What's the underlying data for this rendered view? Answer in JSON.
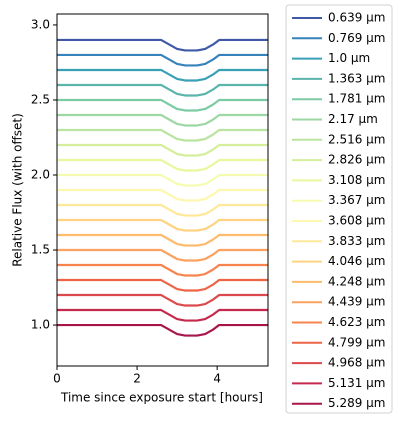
{
  "chart_data": {
    "type": "line",
    "xlabel": "Time since exposure start [hours]",
    "ylabel": "Relative Flux (with offset)",
    "x": [
      0,
      1,
      2,
      2.6,
      2.8,
      3.0,
      3.2,
      3.5,
      3.7,
      3.9,
      4.05,
      5,
      5.27
    ],
    "xlim": [
      0,
      5.27
    ],
    "ylim": [
      0.727,
      3.073
    ],
    "xticks": [
      0,
      2,
      4
    ],
    "yticks": [
      {
        "value": 1,
        "label": "1.0"
      },
      1.5,
      {
        "value": 2,
        "label": "2.0"
      },
      2.5,
      {
        "value": 3,
        "label": "3.0"
      }
    ],
    "legend": "outside-right",
    "series": [
      {
        "name": "0.639 μm",
        "color": "#3f59a7",
        "values": [
          2.9,
          2.9,
          2.9,
          2.9,
          2.87,
          2.84,
          2.83,
          2.83,
          2.84,
          2.87,
          2.9,
          2.9,
          2.9
        ]
      },
      {
        "name": "0.769 μm",
        "color": "#3682ba",
        "values": [
          2.8,
          2.8,
          2.8,
          2.8,
          2.77,
          2.74,
          2.73,
          2.73,
          2.74,
          2.77,
          2.8,
          2.8,
          2.8
        ]
      },
      {
        "name": "1.0 μm",
        "color": "#3aa0b6",
        "values": [
          2.7,
          2.7,
          2.7,
          2.7,
          2.67,
          2.64,
          2.63,
          2.63,
          2.64,
          2.67,
          2.7,
          2.7,
          2.7
        ]
      },
      {
        "name": "1.363 μm",
        "color": "#5ab4ac",
        "values": [
          2.6,
          2.6,
          2.6,
          2.6,
          2.57,
          2.54,
          2.53,
          2.53,
          2.54,
          2.57,
          2.6,
          2.6,
          2.6
        ]
      },
      {
        "name": "1.781 μm",
        "color": "#7ccba4",
        "values": [
          2.5,
          2.5,
          2.5,
          2.5,
          2.47,
          2.44,
          2.43,
          2.43,
          2.44,
          2.47,
          2.5,
          2.5,
          2.5
        ]
      },
      {
        "name": "2.17 μm",
        "color": "#9dd7a4",
        "values": [
          2.4,
          2.4,
          2.4,
          2.4,
          2.37,
          2.34,
          2.33,
          2.33,
          2.34,
          2.37,
          2.4,
          2.4,
          2.4
        ]
      },
      {
        "name": "2.516 μm",
        "color": "#bbe4a0",
        "values": [
          2.3,
          2.3,
          2.3,
          2.3,
          2.27,
          2.24,
          2.23,
          2.23,
          2.24,
          2.27,
          2.3,
          2.3,
          2.3
        ]
      },
      {
        "name": "2.826 μm",
        "color": "#d5ee9b",
        "values": [
          2.2,
          2.2,
          2.2,
          2.2,
          2.17,
          2.14,
          2.13,
          2.13,
          2.14,
          2.17,
          2.2,
          2.2,
          2.2
        ]
      },
      {
        "name": "3.108 μm",
        "color": "#eaf79f",
        "values": [
          2.1,
          2.1,
          2.1,
          2.1,
          2.07,
          2.04,
          2.03,
          2.03,
          2.04,
          2.07,
          2.1,
          2.1,
          2.1
        ]
      },
      {
        "name": "3.367 μm",
        "color": "#f6fbb2",
        "values": [
          2.0,
          2.0,
          2.0,
          2.0,
          1.97,
          1.94,
          1.93,
          1.93,
          1.94,
          1.97,
          2.0,
          2.0,
          2.0
        ]
      },
      {
        "name": "3.608 μm",
        "color": "#fef7b0",
        "values": [
          1.9,
          1.9,
          1.9,
          1.9,
          1.87,
          1.84,
          1.83,
          1.83,
          1.84,
          1.87,
          1.9,
          1.9,
          1.9
        ]
      },
      {
        "name": "3.833 μm",
        "color": "#fee99a",
        "values": [
          1.8,
          1.8,
          1.8,
          1.8,
          1.77,
          1.74,
          1.73,
          1.73,
          1.74,
          1.77,
          1.8,
          1.8,
          1.8
        ]
      },
      {
        "name": "4.046 μm",
        "color": "#fed382",
        "values": [
          1.7,
          1.7,
          1.7,
          1.7,
          1.67,
          1.64,
          1.63,
          1.63,
          1.64,
          1.67,
          1.7,
          1.7,
          1.7
        ]
      },
      {
        "name": "4.248 μm",
        "color": "#fdbc6d",
        "values": [
          1.6,
          1.6,
          1.6,
          1.6,
          1.57,
          1.54,
          1.53,
          1.53,
          1.54,
          1.57,
          1.6,
          1.6,
          1.6
        ]
      },
      {
        "name": "4.439 μm",
        "color": "#fca15f",
        "values": [
          1.5,
          1.5,
          1.5,
          1.5,
          1.47,
          1.44,
          1.43,
          1.43,
          1.44,
          1.47,
          1.5,
          1.5,
          1.5
        ]
      },
      {
        "name": "4.623 μm",
        "color": "#f7844e",
        "values": [
          1.4,
          1.4,
          1.4,
          1.4,
          1.37,
          1.34,
          1.33,
          1.33,
          1.34,
          1.37,
          1.4,
          1.4,
          1.4
        ]
      },
      {
        "name": "4.799 μm",
        "color": "#ee6545",
        "values": [
          1.3,
          1.3,
          1.3,
          1.3,
          1.27,
          1.24,
          1.23,
          1.23,
          1.24,
          1.27,
          1.3,
          1.3,
          1.3
        ]
      },
      {
        "name": "4.968 μm",
        "color": "#dc494c",
        "values": [
          1.2,
          1.2,
          1.2,
          1.2,
          1.17,
          1.14,
          1.13,
          1.13,
          1.14,
          1.17,
          1.2,
          1.2,
          1.2
        ]
      },
      {
        "name": "5.131 μm",
        "color": "#c52a4d",
        "values": [
          1.1,
          1.1,
          1.1,
          1.1,
          1.07,
          1.04,
          1.03,
          1.03,
          1.04,
          1.07,
          1.1,
          1.1,
          1.1
        ]
      },
      {
        "name": "5.289 μm",
        "color": "#a8154a",
        "values": [
          1.0,
          1.0,
          1.0,
          1.0,
          0.97,
          0.94,
          0.93,
          0.93,
          0.94,
          0.97,
          1.0,
          1.0,
          1.0
        ]
      }
    ]
  }
}
